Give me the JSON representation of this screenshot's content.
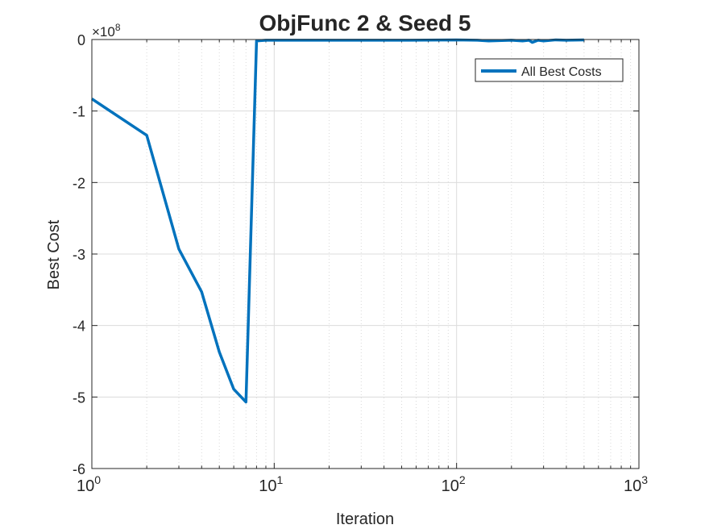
{
  "chart_data": {
    "type": "line",
    "title": "ObjFunc 2 & Seed 5",
    "xlabel": "Iteration",
    "ylabel": "Best Cost",
    "x_scale": "log",
    "xlim": [
      1,
      1000
    ],
    "ylim": [
      -6,
      0
    ],
    "y_exponent_label": "×10",
    "y_exponent": "8",
    "x_ticks": [
      {
        "base": "10",
        "exp": "0",
        "value": 1
      },
      {
        "base": "10",
        "exp": "1",
        "value": 10
      },
      {
        "base": "10",
        "exp": "2",
        "value": 100
      },
      {
        "base": "10",
        "exp": "3",
        "value": 1000
      }
    ],
    "y_ticks": [
      {
        "label": "0",
        "value": 0
      },
      {
        "label": "-1",
        "value": -1
      },
      {
        "label": "-2",
        "value": -2
      },
      {
        "label": "-3",
        "value": -3
      },
      {
        "label": "-4",
        "value": -4
      },
      {
        "label": "-5",
        "value": -5
      },
      {
        "label": "-6",
        "value": -6
      }
    ],
    "grid": true,
    "legend_position": "top-right",
    "series": [
      {
        "name": "All Best Costs",
        "color": "#0072BD",
        "x": [
          1,
          2,
          3,
          4,
          5,
          6,
          7,
          8,
          9,
          10,
          20,
          50,
          100,
          130,
          150,
          200,
          230,
          250,
          260,
          280,
          300,
          350,
          400,
          500
        ],
        "y": [
          -0.83,
          -1.34,
          -2.93,
          -3.53,
          -4.37,
          -4.89,
          -5.07,
          -0.02,
          -0.01,
          -0.01,
          -0.01,
          -0.01,
          -0.005,
          -0.01,
          -0.02,
          -0.01,
          -0.02,
          -0.01,
          -0.04,
          -0.01,
          -0.02,
          -0.005,
          -0.01,
          -0.005
        ]
      }
    ]
  }
}
